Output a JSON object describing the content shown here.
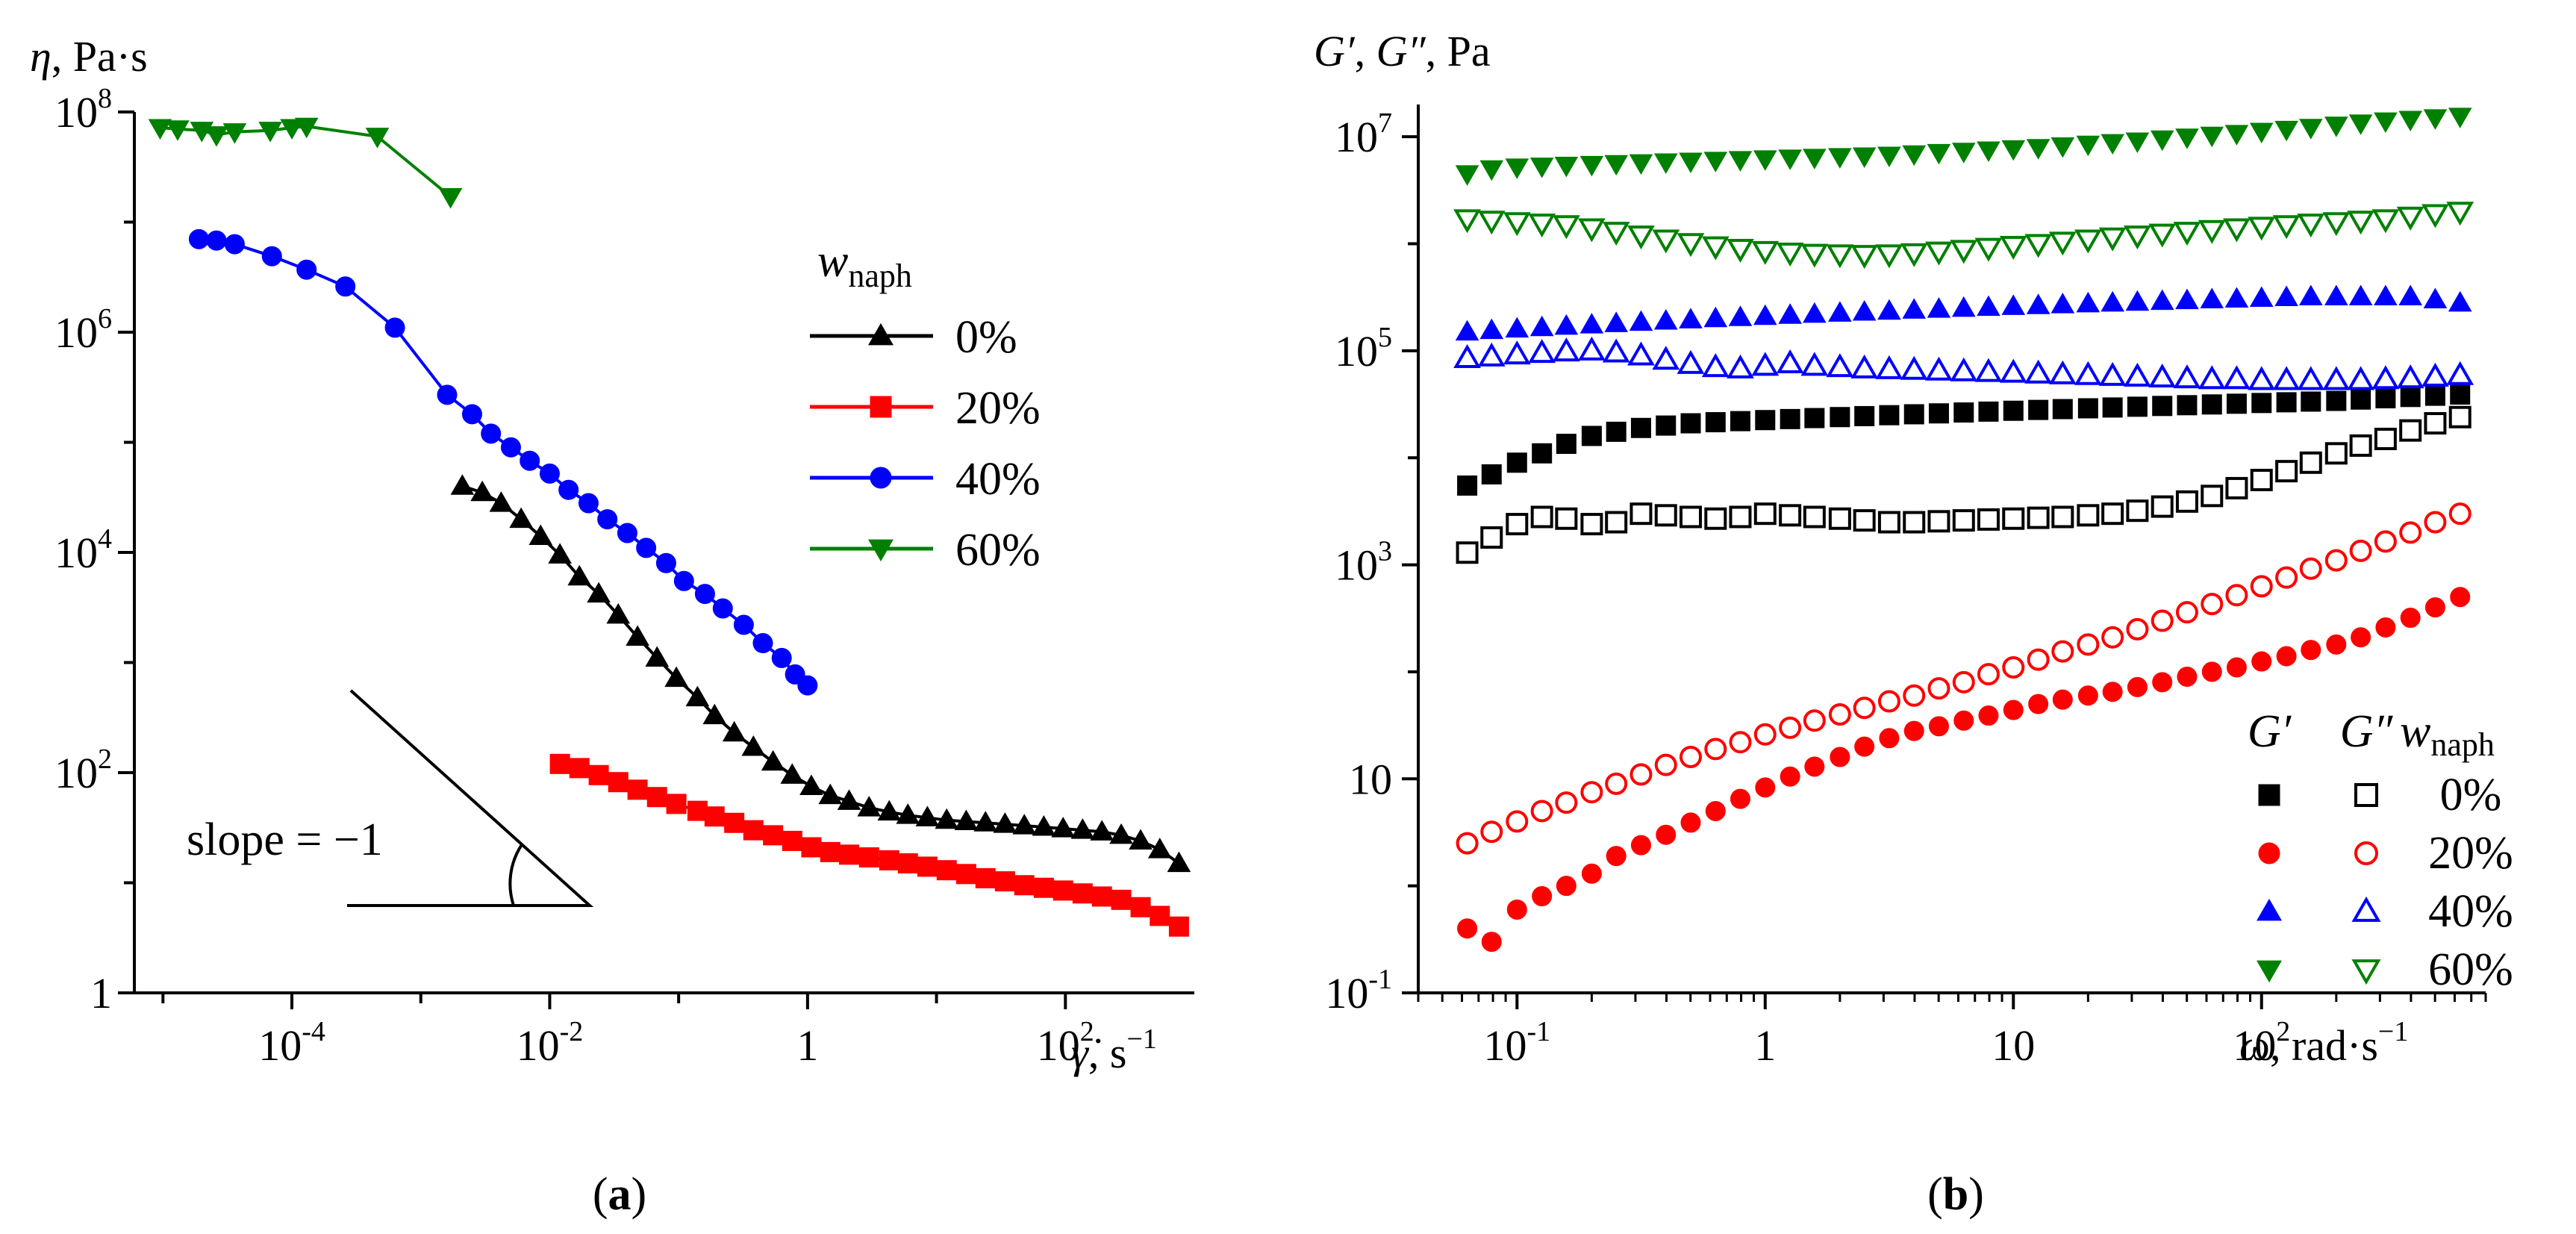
{
  "chart_data": [
    {
      "panel": "a",
      "panel_label": "a",
      "type": "line",
      "scale": "log-log",
      "ylabel": "η, Pa·s",
      "xlabel": "γ̇, s⁻¹",
      "xlabel_unit": ", s",
      "ylabel_unit": ", Pa·s",
      "xlim": [
        6e-06,
        1000
      ],
      "ylim": [
        1,
        100000000
      ],
      "x_ticks": [
        {
          "v": 0.0001,
          "base": "10",
          "exp": "-4"
        },
        {
          "v": 0.01,
          "base": "10",
          "exp": "-2"
        },
        {
          "v": 1,
          "base": "1",
          "exp": ""
        },
        {
          "v": 100,
          "base": "10",
          "exp": "2"
        }
      ],
      "y_ticks": [
        {
          "v": 1,
          "base": "1",
          "exp": ""
        },
        {
          "v": 100,
          "base": "10",
          "exp": "2"
        },
        {
          "v": 10000,
          "base": "10",
          "exp": "4"
        },
        {
          "v": 1000000,
          "base": "10",
          "exp": "6"
        },
        {
          "v": 100000000,
          "base": "10",
          "exp": "8"
        }
      ],
      "legend_title": "w",
      "legend_title_sub": "naph",
      "annotation": "slope = −1",
      "series": [
        {
          "name": "0%",
          "color": "#000000",
          "marker": "triangle-up",
          "x": [
            0.0021,
            0.003,
            0.0042,
            0.006,
            0.0085,
            0.012,
            0.017,
            0.024,
            0.034,
            0.048,
            0.068,
            0.096,
            0.14,
            0.19,
            0.27,
            0.38,
            0.54,
            0.76,
            1.07,
            1.5,
            2.1,
            3.0,
            4.3,
            6,
            8.5,
            12,
            17,
            24,
            34,
            48,
            68,
            96,
            136,
            192,
            271,
            383,
            540,
            760
          ],
          "y": [
            40000,
            35000,
            28000,
            20000,
            14000,
            9500,
            6000,
            4200,
            2700,
            1700,
            1100,
            720,
            480,
            330,
            230,
            170,
            125,
            95,
            75,
            62,
            55,
            48,
            44,
            41,
            39,
            37,
            36,
            35,
            34,
            33,
            32,
            31,
            30,
            29,
            27,
            24,
            20,
            15
          ]
        },
        {
          "name": "20%",
          "color": "#ff0000",
          "marker": "square",
          "x": [
            0.012,
            0.017,
            0.024,
            0.034,
            0.048,
            0.068,
            0.096,
            0.14,
            0.19,
            0.27,
            0.38,
            0.54,
            0.76,
            1.07,
            1.5,
            2.1,
            3.0,
            4.3,
            6,
            8.5,
            12,
            17,
            24,
            34,
            48,
            68,
            96,
            136,
            192,
            271,
            383,
            540,
            760
          ],
          "y": [
            120,
            110,
            95,
            82,
            70,
            60,
            52,
            45,
            40,
            35,
            30,
            27,
            24,
            21,
            19,
            18,
            17,
            16,
            15,
            14,
            13,
            12,
            11,
            10.3,
            9.5,
            9,
            8.5,
            8,
            7.5,
            7,
            6,
            5,
            4
          ]
        },
        {
          "name": "40%",
          "color": "#0000ff",
          "marker": "circle",
          "x": [
            1.9e-05,
            2.6e-05,
            3.6e-05,
            7e-05,
            0.00013,
            0.00026,
            0.00063,
            0.0016,
            0.0025,
            0.0035,
            0.005,
            0.007,
            0.01,
            0.014,
            0.02,
            0.028,
            0.04,
            0.056,
            0.08,
            0.11,
            0.16,
            0.22,
            0.32,
            0.45,
            0.63,
            0.8,
            1.0
          ],
          "y": [
            7000000,
            6800000,
            6300000,
            4900000,
            3700000,
            2600000,
            1100000,
            270000,
            180000,
            120000,
            90000,
            68000,
            52000,
            37000,
            28000,
            20000,
            15000,
            11000,
            8000,
            5500,
            4200,
            3100,
            2200,
            1500,
            1100,
            780,
            620
          ]
        },
        {
          "name": "60%",
          "color": "#008000",
          "marker": "triangle-down",
          "x": [
            9.5e-06,
            1.3e-05,
            2e-05,
            2.6e-05,
            3.6e-05,
            6.8e-05,
            0.0001,
            0.00013,
            0.00046,
            0.0017
          ],
          "y": [
            72000000,
            70000000,
            68000000,
            62000000,
            66000000,
            68000000,
            72000000,
            74000000,
            60000000,
            17000000
          ]
        }
      ]
    },
    {
      "panel": "b",
      "panel_label": "b",
      "type": "scatter",
      "scale": "log-log",
      "ylabel": "G′, G″, Pa",
      "xlabel": "ω, rad·s⁻¹",
      "xlabel_unit": ", rad·s",
      "ylabel_unit": ", Pa",
      "xlim": [
        0.04,
        800
      ],
      "ylim": [
        0.1,
        20000000
      ],
      "x_ticks": [
        {
          "v": 0.1,
          "base": "10",
          "exp": "-1"
        },
        {
          "v": 1,
          "base": "1",
          "exp": ""
        },
        {
          "v": 10,
          "base": "10",
          "exp": ""
        },
        {
          "v": 100,
          "base": "10",
          "exp": "2"
        }
      ],
      "y_ticks": [
        {
          "v": 0.1,
          "base": "10",
          "exp": "-1"
        },
        {
          "v": 10,
          "base": "10",
          "exp": ""
        },
        {
          "v": 1000,
          "base": "10",
          "exp": "3"
        },
        {
          "v": 100000,
          "base": "10",
          "exp": "5"
        },
        {
          "v": 10000000,
          "base": "10",
          "exp": "7"
        }
      ],
      "legend_headers": {
        "g1": "G′",
        "g2": "G″",
        "w": "w",
        "wsub": "naph"
      },
      "legend_entries": [
        "0%",
        "20%",
        "40%",
        "60%"
      ],
      "x": [
        0.063,
        0.079,
        0.1,
        0.126,
        0.158,
        0.2,
        0.251,
        0.316,
        0.398,
        0.501,
        0.631,
        0.794,
        1.0,
        1.26,
        1.58,
        2.0,
        2.51,
        3.16,
        3.98,
        5.01,
        6.31,
        7.94,
        10,
        12.6,
        15.8,
        20,
        25.1,
        31.6,
        39.8,
        50.1,
        63.1,
        79.4,
        100,
        126,
        158,
        200,
        251,
        316,
        398,
        501,
        631
      ],
      "series": [
        {
          "name": "0%",
          "color": "#000000",
          "marker": "square",
          "kind": "G′",
          "y": [
            5500,
            7000,
            9000,
            11000,
            13500,
            16000,
            17500,
            19000,
            20000,
            21000,
            21500,
            22000,
            22500,
            23000,
            23500,
            24000,
            24500,
            25000,
            25500,
            26000,
            26500,
            27000,
            27500,
            28000,
            28500,
            29000,
            29500,
            30000,
            30500,
            31000,
            31500,
            32000,
            32500,
            33000,
            33500,
            34000,
            35000,
            36000,
            37000,
            38000,
            39000
          ]
        },
        {
          "name": "0%",
          "color": "#000000",
          "marker": "square-open",
          "kind": "G″",
          "y": [
            1300,
            1800,
            2400,
            2800,
            2700,
            2400,
            2500,
            3000,
            2900,
            2800,
            2700,
            2800,
            3000,
            2900,
            2800,
            2700,
            2600,
            2500,
            2500,
            2550,
            2600,
            2650,
            2700,
            2750,
            2800,
            2900,
            3000,
            3200,
            3500,
            3900,
            4400,
            5200,
            6200,
            7500,
            9000,
            11000,
            13000,
            15000,
            18000,
            21000,
            24000
          ]
        },
        {
          "name": "20%",
          "color": "#ff0000",
          "marker": "circle",
          "kind": "G′",
          "y": [
            0.4,
            0.3,
            0.6,
            0.8,
            1.0,
            1.3,
            1.9,
            2.4,
            3.0,
            3.9,
            5.0,
            6.5,
            8.3,
            10.5,
            13,
            16,
            20,
            24,
            28,
            31,
            35,
            39,
            44,
            50,
            55,
            60,
            65,
            72,
            80,
            90,
            100,
            110,
            125,
            140,
            160,
            180,
            210,
            260,
            320,
            400,
            500
          ]
        },
        {
          "name": "20%",
          "color": "#ff0000",
          "marker": "circle-open",
          "kind": "G″",
          "y": [
            2.5,
            3.2,
            4,
            5,
            6,
            7.5,
            9,
            11,
            13.5,
            16,
            19,
            22,
            26,
            30,
            35,
            40,
            46,
            53,
            60,
            70,
            80,
            95,
            110,
            130,
            155,
            180,
            210,
            250,
            300,
            360,
            430,
            520,
            630,
            760,
            920,
            1100,
            1350,
            1650,
            2000,
            2500,
            3000
          ]
        },
        {
          "name": "40%",
          "color": "#0000ff",
          "marker": "triangle-up",
          "kind": "G′",
          "y": [
            150000,
            155000,
            160000,
            165000,
            170000,
            175000,
            180000,
            185000,
            190000,
            195000,
            200000,
            205000,
            210000,
            215000,
            220000,
            225000,
            230000,
            235000,
            240000,
            245000,
            250000,
            255000,
            260000,
            265000,
            270000,
            275000,
            280000,
            285000,
            290000,
            295000,
            300000,
            305000,
            310000,
            315000,
            320000,
            320000,
            320000,
            320000,
            320000,
            300000,
            280000
          ]
        },
        {
          "name": "40%",
          "color": "#0000ff",
          "marker": "triangle-up-open",
          "kind": "G″",
          "y": [
            85000,
            88000,
            92000,
            95000,
            98000,
            100000,
            96000,
            90000,
            82000,
            75000,
            70000,
            68000,
            72000,
            76000,
            72000,
            70000,
            68000,
            67000,
            66000,
            65000,
            64000,
            63000,
            62000,
            61000,
            60000,
            59000,
            58000,
            57000,
            56000,
            55000,
            54000,
            54000,
            53000,
            53000,
            53000,
            53000,
            53000,
            54000,
            55000,
            57000,
            59000
          ]
        },
        {
          "name": "60%",
          "color": "#008000",
          "marker": "triangle-down",
          "kind": "G′",
          "y": [
            4500000,
            5000000,
            5200000,
            5300000,
            5400000,
            5500000,
            5600000,
            5700000,
            5800000,
            5900000,
            6000000,
            6100000,
            6200000,
            6300000,
            6400000,
            6500000,
            6600000,
            6700000,
            6900000,
            7100000,
            7300000,
            7500000,
            7700000,
            7900000,
            8200000,
            8500000,
            8800000,
            9100000,
            9500000,
            9900000,
            10300000,
            10700000,
            11200000,
            11700000,
            12200000,
            12800000,
            13400000,
            14000000,
            14500000,
            15000000,
            15500000
          ]
        },
        {
          "name": "60%",
          "color": "#008000",
          "marker": "triangle-down-open",
          "kind": "G″",
          "y": [
            1700000,
            1650000,
            1600000,
            1550000,
            1500000,
            1400000,
            1300000,
            1200000,
            1100000,
            1020000,
            950000,
            900000,
            860000,
            830000,
            810000,
            800000,
            790000,
            800000,
            820000,
            850000,
            880000,
            920000,
            960000,
            1000000,
            1050000,
            1100000,
            1150000,
            1200000,
            1250000,
            1300000,
            1350000,
            1400000,
            1450000,
            1500000,
            1550000,
            1600000,
            1650000,
            1700000,
            1800000,
            1900000,
            2000000
          ]
        }
      ]
    }
  ]
}
